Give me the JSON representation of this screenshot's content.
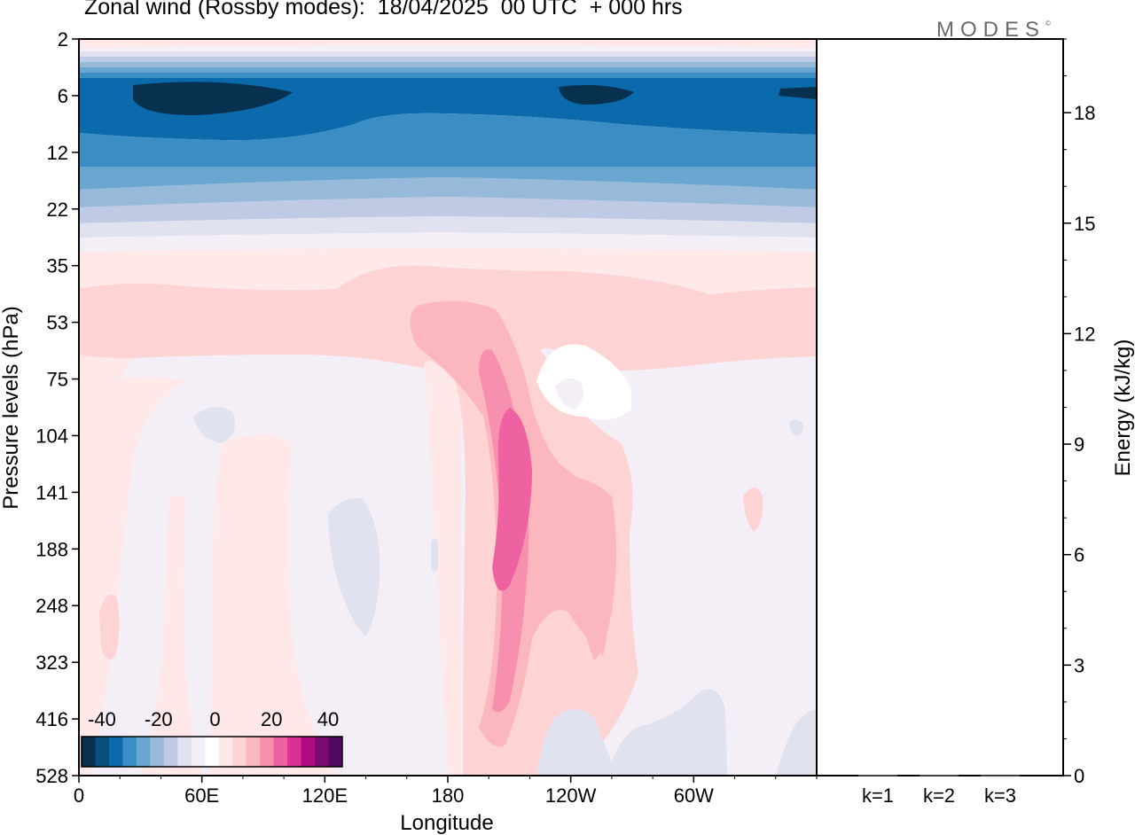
{
  "header": {
    "title": "Zonal wind (Rossby modes):  18/04/2025  00 UTC  + 000 hrs",
    "logo": "MODES",
    "logo_mark": "©"
  },
  "chart_data": [
    {
      "type": "heatmap",
      "title": "Zonal wind (Rossby modes):  18/04/2025  00 UTC  + 000 hrs",
      "xlabel": "Longitude",
      "ylabel": "Pressure levels (hPa)",
      "x_ticks": [
        "0",
        "60E",
        "120E",
        "180",
        "120W",
        "60W"
      ],
      "x_tick_lon": [
        0,
        60,
        120,
        180,
        240,
        300
      ],
      "x_range": [
        0,
        360
      ],
      "y_ticks": [
        "2",
        "6",
        "12",
        "22",
        "35",
        "53",
        "75",
        "104",
        "141",
        "188",
        "248",
        "323",
        "416",
        "528"
      ],
      "y_scale": "pressure levels, top to bottom",
      "colorbar": {
        "labels": [
          "-40",
          "-20",
          "0",
          "20",
          "40"
        ],
        "placement": "bottom-left",
        "colors": [
          "#08304f",
          "#084f7e",
          "#0b6aab",
          "#3b8ec4",
          "#6aa7d0",
          "#97b9da",
          "#bfcbe4",
          "#e1e2f0",
          "#f4eff7",
          "#ffffff",
          "#ffe8e8",
          "#fdd3d3",
          "#fbb7bd",
          "#f78fae",
          "#ef62a2",
          "#d93292",
          "#ae0c7f",
          "#7f0a74",
          "#4f0a5f"
        ]
      },
      "grid": false
    },
    {
      "type": "bar",
      "ylabel": "Energy (kJ/kg)",
      "categories": [
        "k=1",
        "k=2",
        "k=3"
      ],
      "values": [
        0.02,
        0.02,
        0.01
      ],
      "y_ticks": [
        "0",
        "3",
        "6",
        "9",
        "12",
        "15",
        "18"
      ],
      "ylim": [
        0,
        20
      ],
      "axis_side": "right"
    }
  ]
}
